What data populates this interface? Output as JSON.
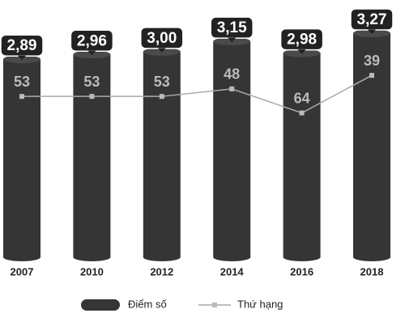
{
  "chart_data": {
    "type": "bar-line",
    "categories": [
      "2007",
      "2010",
      "2012",
      "2014",
      "2016",
      "2018"
    ],
    "series": [
      {
        "name": "Điểm số",
        "type": "bar",
        "color": "#353535",
        "values": [
          2.89,
          2.96,
          3.0,
          3.15,
          2.98,
          3.27
        ],
        "value_labels": [
          "2,89",
          "2,96",
          "3,00",
          "3,15",
          "2,98",
          "3,27"
        ]
      },
      {
        "name": "Thứ hạng",
        "type": "line",
        "axis": "y2",
        "color": "#aaaaaa",
        "values": [
          53,
          53,
          53,
          48,
          64,
          39
        ]
      }
    ],
    "ylim": [
      0,
      3.4
    ],
    "y2lim": [
      160,
      5
    ]
  }
}
